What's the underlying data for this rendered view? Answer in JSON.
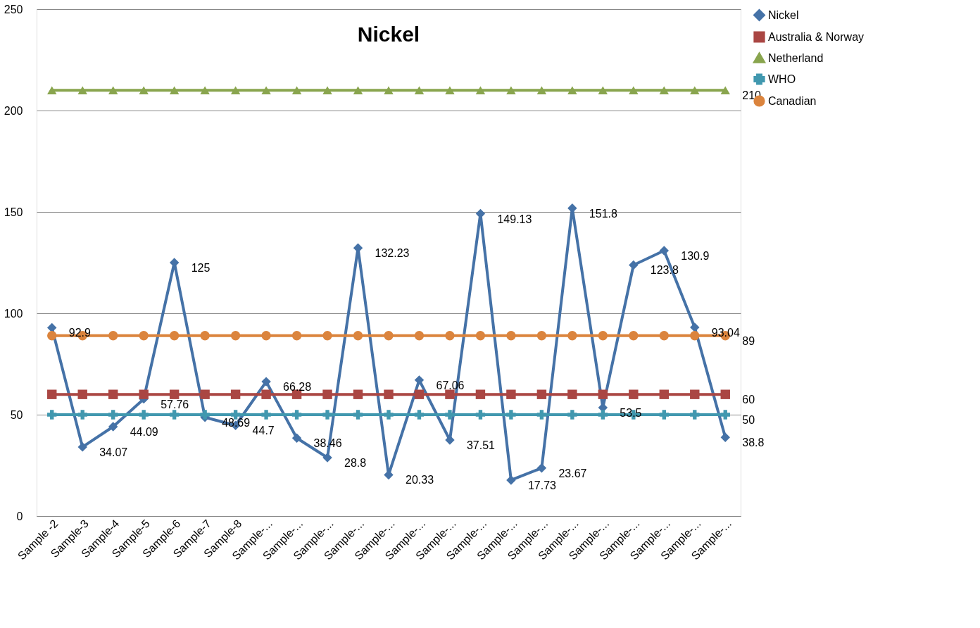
{
  "chart_data": {
    "type": "line",
    "title": "Nickel",
    "categories": [
      "Sample -2",
      "Sample-3",
      "Sample-4",
      "Sample-5",
      "Sample-6",
      "Sample-7",
      "Sample-8",
      "Sample-...",
      "Sample-...",
      "Sample-...",
      "Sample-...",
      "Sample-...",
      "Sample-...",
      "Sample-...",
      "Sample-...",
      "Sample-...",
      "Sample-...",
      "Sample-...",
      "Sample-...",
      "Sample-...",
      "Sample-...",
      "Sample-...",
      "Sample-..."
    ],
    "series": [
      {
        "name": "Nickel",
        "color": "#4572a7",
        "marker": "diamond",
        "values": [
          92.9,
          34.07,
          44.09,
          57.76,
          125,
          48.69,
          44.7,
          66.28,
          38.46,
          28.8,
          132.23,
          20.33,
          67.06,
          37.51,
          149.13,
          17.73,
          23.67,
          151.8,
          53.5,
          123.8,
          130.9,
          93.04,
          38.8
        ],
        "value_labels": [
          "92.9",
          "34.07",
          "44.09",
          "57.76",
          "125",
          "48.69",
          "44.7",
          "66.28",
          "38.46",
          "28.8",
          "132.23",
          "20.33",
          "67.06",
          "37.51",
          "149.13",
          "17.73",
          "23.67",
          "151.8",
          "53.5",
          "123.8",
          "130.9",
          "93.04",
          "38.8"
        ]
      },
      {
        "name": "Australia & Norway",
        "color": "#aa4643",
        "marker": "square",
        "values": [
          60,
          60,
          60,
          60,
          60,
          60,
          60,
          60,
          60,
          60,
          60,
          60,
          60,
          60,
          60,
          60,
          60,
          60,
          60,
          60,
          60,
          60,
          60
        ],
        "value_labels": [
          null,
          null,
          null,
          null,
          null,
          null,
          null,
          null,
          null,
          null,
          null,
          null,
          null,
          null,
          null,
          null,
          null,
          null,
          null,
          null,
          null,
          null,
          "60"
        ]
      },
      {
        "name": "Netherland",
        "color": "#89a54e",
        "marker": "triangle",
        "values": [
          210,
          210,
          210,
          210,
          210,
          210,
          210,
          210,
          210,
          210,
          210,
          210,
          210,
          210,
          210,
          210,
          210,
          210,
          210,
          210,
          210,
          210,
          210
        ],
        "value_labels": [
          null,
          null,
          null,
          null,
          null,
          null,
          null,
          null,
          null,
          null,
          null,
          null,
          null,
          null,
          null,
          null,
          null,
          null,
          null,
          null,
          null,
          null,
          "210"
        ]
      },
      {
        "name": "WHO",
        "color": "#4198af",
        "marker": "cross",
        "values": [
          50,
          50,
          50,
          50,
          50,
          50,
          50,
          50,
          50,
          50,
          50,
          50,
          50,
          50,
          50,
          50,
          50,
          50,
          50,
          50,
          50,
          50,
          50
        ],
        "value_labels": [
          null,
          null,
          null,
          null,
          null,
          null,
          null,
          null,
          null,
          null,
          null,
          null,
          null,
          null,
          null,
          null,
          null,
          null,
          null,
          null,
          null,
          null,
          "50"
        ]
      },
      {
        "name": "Canadian",
        "color": "#db843d",
        "marker": "circle",
        "values": [
          89,
          89,
          89,
          89,
          89,
          89,
          89,
          89,
          89,
          89,
          89,
          89,
          89,
          89,
          89,
          89,
          89,
          89,
          89,
          89,
          89,
          89,
          89
        ],
        "value_labels": [
          null,
          null,
          null,
          null,
          null,
          null,
          null,
          null,
          null,
          null,
          null,
          null,
          null,
          null,
          null,
          null,
          null,
          null,
          null,
          null,
          null,
          null,
          "89"
        ]
      }
    ],
    "ylim": [
      0,
      250
    ],
    "yticks": [
      0,
      50,
      100,
      150,
      200,
      250
    ],
    "grid": "y",
    "legend": "right",
    "line_style": "solid"
  }
}
